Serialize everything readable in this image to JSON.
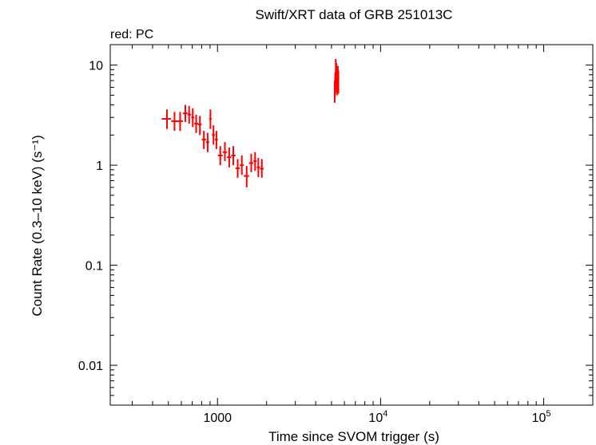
{
  "chart_data": {
    "type": "scatter",
    "title": "Swift/XRT data of GRB 251013C",
    "subtitle": "red: PC",
    "xlabel": "Time since SVOM trigger (s)",
    "ylabel": "Count Rate (0.3–10 keV) (s⁻¹)",
    "x_scale": "log",
    "y_scale": "log",
    "xlim": [
      220,
      200000
    ],
    "ylim": [
      0.004,
      16
    ],
    "grid": false,
    "x_ticks": [
      {
        "value": 1000,
        "label": "1000",
        "sup": ""
      },
      {
        "value": 10000,
        "label": "10",
        "sup": "4"
      },
      {
        "value": 100000,
        "label": "10",
        "sup": "5"
      }
    ],
    "y_ticks": [
      {
        "value": 10,
        "label": "10"
      },
      {
        "value": 1,
        "label": "1"
      },
      {
        "value": 0.1,
        "label": "0.1"
      },
      {
        "value": 0.01,
        "label": "0.01"
      }
    ],
    "series": [
      {
        "name": "PC",
        "color": "#ff0000",
        "points": [
          {
            "x": 490,
            "y": 2.9,
            "xlo": 455,
            "xhi": 520,
            "ylo": 2.3,
            "yhi": 3.6
          },
          {
            "x": 545,
            "y": 2.75,
            "xlo": 520,
            "xhi": 570,
            "ylo": 2.2,
            "yhi": 3.4
          },
          {
            "x": 590,
            "y": 2.75,
            "xlo": 570,
            "xhi": 615,
            "ylo": 2.2,
            "yhi": 3.4
          },
          {
            "x": 635,
            "y": 3.3,
            "xlo": 615,
            "xhi": 655,
            "ylo": 2.7,
            "yhi": 4.0
          },
          {
            "x": 670,
            "y": 3.2,
            "xlo": 655,
            "xhi": 690,
            "ylo": 2.6,
            "yhi": 3.9
          },
          {
            "x": 705,
            "y": 3.0,
            "xlo": 690,
            "xhi": 720,
            "ylo": 2.4,
            "yhi": 3.7
          },
          {
            "x": 740,
            "y": 2.6,
            "xlo": 720,
            "xhi": 760,
            "ylo": 2.1,
            "yhi": 3.2
          },
          {
            "x": 780,
            "y": 2.55,
            "xlo": 760,
            "xhi": 800,
            "ylo": 2.0,
            "yhi": 3.1
          },
          {
            "x": 825,
            "y": 1.8,
            "xlo": 800,
            "xhi": 850,
            "ylo": 1.45,
            "yhi": 2.2
          },
          {
            "x": 870,
            "y": 1.7,
            "xlo": 850,
            "xhi": 890,
            "ylo": 1.35,
            "yhi": 2.1
          },
          {
            "x": 905,
            "y": 2.9,
            "xlo": 890,
            "xhi": 920,
            "ylo": 2.3,
            "yhi": 3.6
          },
          {
            "x": 945,
            "y": 2.0,
            "xlo": 925,
            "xhi": 965,
            "ylo": 1.6,
            "yhi": 2.5
          },
          {
            "x": 985,
            "y": 1.8,
            "xlo": 965,
            "xhi": 1005,
            "ylo": 1.45,
            "yhi": 2.2
          },
          {
            "x": 1040,
            "y": 1.25,
            "xlo": 1005,
            "xhi": 1075,
            "ylo": 1.0,
            "yhi": 1.55
          },
          {
            "x": 1110,
            "y": 1.35,
            "xlo": 1075,
            "xhi": 1145,
            "ylo": 1.1,
            "yhi": 1.7
          },
          {
            "x": 1180,
            "y": 1.2,
            "xlo": 1145,
            "xhi": 1215,
            "ylo": 0.95,
            "yhi": 1.5
          },
          {
            "x": 1250,
            "y": 1.25,
            "xlo": 1215,
            "xhi": 1290,
            "ylo": 1.0,
            "yhi": 1.55
          },
          {
            "x": 1330,
            "y": 0.93,
            "xlo": 1290,
            "xhi": 1370,
            "ylo": 0.75,
            "yhi": 1.15
          },
          {
            "x": 1410,
            "y": 1.0,
            "xlo": 1370,
            "xhi": 1450,
            "ylo": 0.8,
            "yhi": 1.25
          },
          {
            "x": 1510,
            "y": 0.78,
            "xlo": 1450,
            "xhi": 1560,
            "ylo": 0.6,
            "yhi": 0.98
          },
          {
            "x": 1610,
            "y": 1.05,
            "xlo": 1560,
            "xhi": 1660,
            "ylo": 0.85,
            "yhi": 1.3
          },
          {
            "x": 1700,
            "y": 1.1,
            "xlo": 1660,
            "xhi": 1740,
            "ylo": 0.88,
            "yhi": 1.35
          },
          {
            "x": 1780,
            "y": 0.95,
            "xlo": 1740,
            "xhi": 1820,
            "ylo": 0.76,
            "yhi": 1.18
          },
          {
            "x": 1870,
            "y": 0.92,
            "xlo": 1820,
            "xhi": 1920,
            "ylo": 0.75,
            "yhi": 1.15
          },
          {
            "x": 5230,
            "y": 5.4,
            "xlo": 5210,
            "xhi": 5250,
            "ylo": 4.2,
            "yhi": 7.0
          },
          {
            "x": 5270,
            "y": 6.5,
            "xlo": 5250,
            "xhi": 5290,
            "ylo": 5.0,
            "yhi": 8.5
          },
          {
            "x": 5310,
            "y": 8.5,
            "xlo": 5290,
            "xhi": 5330,
            "ylo": 6.5,
            "yhi": 11.5
          },
          {
            "x": 5350,
            "y": 7.8,
            "xlo": 5330,
            "xhi": 5370,
            "ylo": 6.0,
            "yhi": 10.5
          },
          {
            "x": 5390,
            "y": 7.0,
            "xlo": 5370,
            "xhi": 5410,
            "ylo": 5.3,
            "yhi": 9.5
          },
          {
            "x": 5430,
            "y": 6.5,
            "xlo": 5410,
            "xhi": 5450,
            "ylo": 5.0,
            "yhi": 8.5
          },
          {
            "x": 5470,
            "y": 7.5,
            "xlo": 5450,
            "xhi": 5490,
            "ylo": 5.8,
            "yhi": 9.8
          },
          {
            "x": 5510,
            "y": 6.8,
            "xlo": 5490,
            "xhi": 5530,
            "ylo": 5.2,
            "yhi": 8.8
          }
        ]
      }
    ]
  }
}
